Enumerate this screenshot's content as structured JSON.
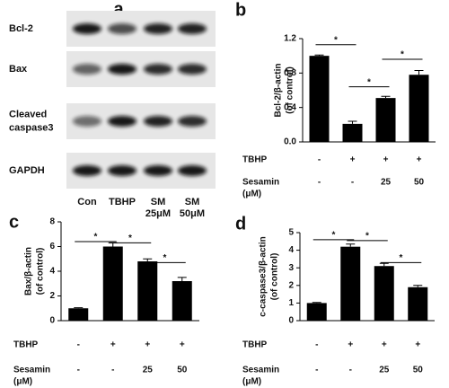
{
  "blot": {
    "panel": "a",
    "rows": [
      [
        "Bcl-2"
      ],
      [
        "Bax"
      ],
      [
        "Cleaved",
        "caspase3"
      ],
      [
        "GAPDH"
      ]
    ],
    "lanes": [
      [
        "Con"
      ],
      [
        "TBHP"
      ],
      [
        "SM",
        "25μM"
      ],
      [
        "SM",
        "50μM"
      ]
    ]
  },
  "chart_data": [
    {
      "type": "bar",
      "panel": "b",
      "ylabel": [
        "Bcl-2/β-actin",
        "(of control)"
      ],
      "color": "#000000",
      "values": [
        1.0,
        0.21,
        0.51,
        0.78
      ],
      "errors": [
        0.01,
        0.03,
        0.02,
        0.05
      ],
      "ylim": [
        0,
        1.2
      ],
      "yticks": [
        {
          "value": 0,
          "label": "0.0"
        },
        0.4,
        0.8,
        1.2
      ],
      "comparisons": [
        {
          "from": 0,
          "to": 1,
          "y": 1.13,
          "label": "*"
        },
        {
          "from": 1,
          "to": 2,
          "y": 0.64,
          "label": "*"
        },
        {
          "from": 2,
          "to": 3,
          "y": 0.96,
          "label": "*"
        }
      ],
      "conditions": [
        {
          "name": [
            "TBHP"
          ],
          "values": [
            "-",
            "+",
            "+",
            "+"
          ]
        },
        {
          "name": [
            "Sesamin",
            "(μM)"
          ],
          "values": [
            "-",
            "-",
            "25",
            "50"
          ]
        }
      ]
    },
    {
      "type": "bar",
      "panel": "c",
      "ylabel": [
        "Bax/β-actin",
        "(of control)"
      ],
      "color": "#000000",
      "values": [
        1.0,
        6.0,
        4.8,
        3.2
      ],
      "errors": [
        0.05,
        0.3,
        0.2,
        0.3
      ],
      "ylim": [
        0,
        8
      ],
      "yticks": [
        0,
        2,
        4,
        6,
        8
      ],
      "comparisons": [
        {
          "from": 0,
          "to": 1,
          "y": 6.4,
          "label": "*"
        },
        {
          "from": 1,
          "to": 2,
          "y": 6.3,
          "label": "*"
        },
        {
          "from": 2,
          "to": 3,
          "y": 4.7,
          "label": "*"
        }
      ],
      "conditions": [
        {
          "name": [
            "TBHP"
          ],
          "values": [
            "-",
            "+",
            "+",
            "+"
          ]
        },
        {
          "name": [
            "Sesamin",
            "(μM)"
          ],
          "values": [
            "-",
            "-",
            "25",
            "50"
          ]
        }
      ]
    },
    {
      "type": "bar",
      "panel": "d",
      "ylabel": [
        "c-caspase3/β-actin",
        "(of control)"
      ],
      "color": "#000000",
      "values": [
        1.0,
        4.2,
        3.1,
        1.9
      ],
      "errors": [
        0.03,
        0.15,
        0.15,
        0.1
      ],
      "ylim": [
        0,
        5
      ],
      "yticks": [
        0,
        1,
        2,
        3,
        4,
        5
      ],
      "comparisons": [
        {
          "from": 0,
          "to": 1,
          "y": 4.6,
          "label": "*"
        },
        {
          "from": 1,
          "to": 2,
          "y": 4.55,
          "label": "*"
        },
        {
          "from": 2,
          "to": 3,
          "y": 3.3,
          "label": "*"
        }
      ],
      "conditions": [
        {
          "name": [
            "TBHP"
          ],
          "values": [
            "-",
            "+",
            "+",
            "+"
          ]
        },
        {
          "name": [
            "Sesamin",
            "(μM)"
          ],
          "values": [
            "-",
            "-",
            "25",
            "50"
          ]
        }
      ]
    }
  ]
}
